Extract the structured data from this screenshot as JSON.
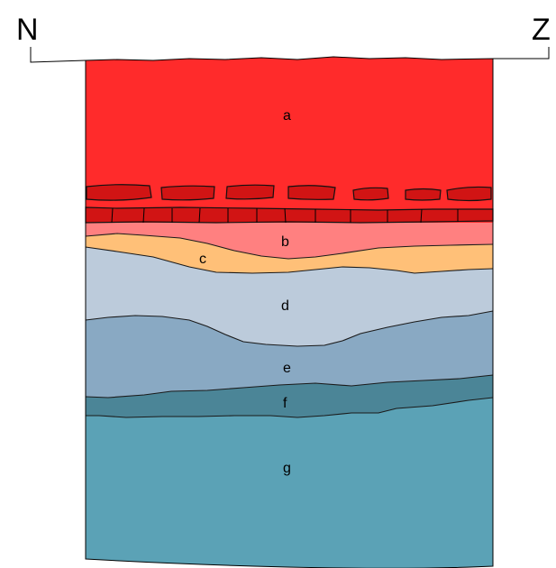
{
  "orientation": {
    "left": "N",
    "right": "Z"
  },
  "layers": [
    {
      "id": "a",
      "label": "a",
      "color": "#ff2b2b"
    },
    {
      "id": "b",
      "label": "b",
      "color": "#ff8080"
    },
    {
      "id": "c",
      "label": "c",
      "color": "#ffc078"
    },
    {
      "id": "d",
      "label": "d",
      "color": "#bccbdb"
    },
    {
      "id": "e",
      "label": "e",
      "color": "#89a9c3"
    },
    {
      "id": "f",
      "label": "f",
      "color": "#4b8597"
    },
    {
      "id": "g",
      "label": "g",
      "color": "#5ba2b6"
    }
  ],
  "brick_color": "#d11414"
}
